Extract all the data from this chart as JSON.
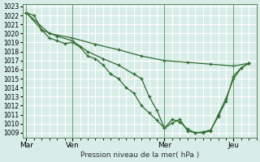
{
  "title": "",
  "xlabel": "Pression niveau de la mer( hPa )",
  "ylim": [
    1009,
    1023
  ],
  "yticks": [
    1009,
    1010,
    1011,
    1012,
    1013,
    1014,
    1015,
    1016,
    1017,
    1018,
    1019,
    1020,
    1021,
    1022,
    1023
  ],
  "xtick_labels": [
    "Mar",
    "Ven",
    "Mer",
    "Jeu"
  ],
  "xtick_positions": [
    0,
    12,
    36,
    54
  ],
  "bg_color": "#d8ede8",
  "grid_color": "#ffffff",
  "line_color": "#2d6a2d",
  "line1": [
    [
      0,
      1022.3
    ],
    [
      2,
      1022.0
    ],
    [
      4,
      1020.4
    ],
    [
      6,
      1019.5
    ],
    [
      8,
      1019.2
    ],
    [
      10,
      1018.9
    ],
    [
      12,
      1019.0
    ],
    [
      14,
      1018.5
    ],
    [
      16,
      1017.5
    ],
    [
      18,
      1017.2
    ],
    [
      20,
      1016.5
    ],
    [
      22,
      1015.5
    ],
    [
      24,
      1015.0
    ],
    [
      26,
      1014.0
    ],
    [
      28,
      1013.4
    ],
    [
      30,
      1012.0
    ],
    [
      32,
      1011.2
    ],
    [
      34,
      1010.4
    ],
    [
      36,
      1009.5
    ],
    [
      38,
      1010.1
    ],
    [
      40,
      1010.5
    ],
    [
      42,
      1009.2
    ],
    [
      44,
      1009.0
    ],
    [
      46,
      1009.0
    ],
    [
      48,
      1009.2
    ],
    [
      50,
      1011.0
    ],
    [
      52,
      1012.8
    ],
    [
      54,
      1015.0
    ],
    [
      56,
      1016.2
    ],
    [
      58,
      1016.7
    ]
  ],
  "line2": [
    [
      0,
      1022.3
    ],
    [
      6,
      1020.0
    ],
    [
      12,
      1019.5
    ],
    [
      18,
      1018.8
    ],
    [
      24,
      1018.2
    ],
    [
      30,
      1017.5
    ],
    [
      36,
      1017.0
    ],
    [
      42,
      1016.8
    ],
    [
      48,
      1016.6
    ],
    [
      54,
      1016.4
    ],
    [
      58,
      1016.7
    ]
  ],
  "line3": [
    [
      0,
      1022.3
    ],
    [
      4,
      1020.4
    ],
    [
      8,
      1019.7
    ],
    [
      12,
      1019.2
    ],
    [
      16,
      1018.0
    ],
    [
      20,
      1017.2
    ],
    [
      24,
      1016.5
    ],
    [
      28,
      1015.5
    ],
    [
      30,
      1015.0
    ],
    [
      32,
      1013.0
    ],
    [
      34,
      1011.5
    ],
    [
      36,
      1009.5
    ],
    [
      38,
      1010.5
    ],
    [
      40,
      1010.2
    ],
    [
      42,
      1009.4
    ],
    [
      44,
      1009.0
    ],
    [
      46,
      1009.1
    ],
    [
      48,
      1009.3
    ],
    [
      50,
      1010.8
    ],
    [
      52,
      1012.5
    ],
    [
      54,
      1015.3
    ],
    [
      56,
      1016.2
    ],
    [
      58,
      1016.7
    ]
  ]
}
